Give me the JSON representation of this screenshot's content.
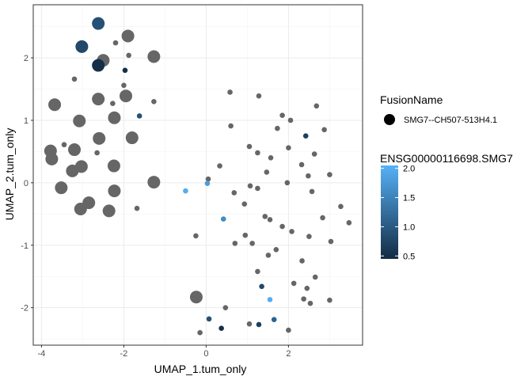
{
  "chart_data": {
    "type": "scatter",
    "title": "",
    "xlabel": "UMAP_1.tum_only",
    "ylabel": "UMAP_2.tum_only",
    "xlim": [
      -4.2,
      3.8
    ],
    "ylim": [
      -2.6,
      2.85
    ],
    "xticks": [
      -4,
      -2,
      0,
      2
    ],
    "yticks": [
      -2,
      -1,
      0,
      1,
      2
    ],
    "grid": true,
    "gray_color": "#666666",
    "legend": {
      "placement": "right",
      "fusion_title": "FusionName",
      "fusion_label": "SMG7--CH507-513H4.1",
      "color_title": "ENSG00000116698.SMG7",
      "color_ticks": [
        "2.0",
        "1.5",
        "1.0",
        "0.5"
      ],
      "color_tick_values": [
        2.0,
        1.5,
        1.0,
        0.5
      ],
      "color_range": [
        0.45,
        2.05
      ],
      "color_low": "#132B43",
      "color_high": "#56B1F7"
    },
    "points": [
      {
        "x": -2.62,
        "y": 2.55,
        "size": 4,
        "expr": 0.9
      },
      {
        "x": -3.02,
        "y": 2.18,
        "size": 4,
        "expr": 0.8
      },
      {
        "x": -2.62,
        "y": 1.88,
        "size": 4,
        "expr": 0.5
      },
      {
        "x": -1.97,
        "y": 1.8,
        "size": 1,
        "expr": 0.5
      },
      {
        "x": -1.62,
        "y": 1.07,
        "size": 1,
        "expr": 0.9
      },
      {
        "x": 2.42,
        "y": 0.75,
        "size": 1,
        "expr": 0.7
      },
      {
        "x": -0.5,
        "y": -0.13,
        "size": 1,
        "expr": 2.0
      },
      {
        "x": 0.03,
        "y": -0.01,
        "size": 1,
        "expr": 1.8
      },
      {
        "x": 0.42,
        "y": -0.58,
        "size": 1,
        "expr": 1.6
      },
      {
        "x": 1.35,
        "y": -1.66,
        "size": 1,
        "expr": 0.8
      },
      {
        "x": 1.55,
        "y": -1.87,
        "size": 1,
        "expr": 2.0
      },
      {
        "x": 0.07,
        "y": -2.18,
        "size": 1,
        "expr": 0.9
      },
      {
        "x": 0.37,
        "y": -2.33,
        "size": 1,
        "expr": 0.5
      },
      {
        "x": 1.65,
        "y": -2.19,
        "size": 1,
        "expr": 1.1
      },
      {
        "x": 1.28,
        "y": -2.27,
        "size": 1,
        "expr": 0.7
      },
      {
        "x": -2.2,
        "y": 2.24,
        "size": 1,
        "expr": null
      },
      {
        "x": -1.9,
        "y": 2.35,
        "size": 4,
        "expr": null
      },
      {
        "x": -2.5,
        "y": 1.96,
        "size": 4,
        "expr": null
      },
      {
        "x": -1.88,
        "y": 2.04,
        "size": 1,
        "expr": null
      },
      {
        "x": -1.27,
        "y": 2.02,
        "size": 4,
        "expr": null
      },
      {
        "x": -3.2,
        "y": 1.66,
        "size": 1,
        "expr": null
      },
      {
        "x": -2.0,
        "y": 1.56,
        "size": 1,
        "expr": null
      },
      {
        "x": -2.62,
        "y": 1.34,
        "size": 4,
        "expr": null
      },
      {
        "x": -1.95,
        "y": 1.39,
        "size": 4,
        "expr": null
      },
      {
        "x": -2.27,
        "y": 1.27,
        "size": 1,
        "expr": null
      },
      {
        "x": -3.68,
        "y": 1.25,
        "size": 4,
        "expr": null
      },
      {
        "x": -1.27,
        "y": 1.3,
        "size": 1,
        "expr": null
      },
      {
        "x": -3.08,
        "y": 0.99,
        "size": 4,
        "expr": null
      },
      {
        "x": -2.23,
        "y": 1.04,
        "size": 4,
        "expr": null
      },
      {
        "x": -2.6,
        "y": 0.71,
        "size": 4,
        "expr": null
      },
      {
        "x": -1.8,
        "y": 0.72,
        "size": 4,
        "expr": null
      },
      {
        "x": -3.78,
        "y": 0.51,
        "size": 4,
        "expr": null
      },
      {
        "x": -3.45,
        "y": 0.61,
        "size": 1,
        "expr": null
      },
      {
        "x": -3.2,
        "y": 0.53,
        "size": 4,
        "expr": null
      },
      {
        "x": -2.65,
        "y": 0.48,
        "size": 1,
        "expr": null
      },
      {
        "x": -3.75,
        "y": 0.38,
        "size": 4,
        "expr": null
      },
      {
        "x": -3.25,
        "y": 0.19,
        "size": 4,
        "expr": null
      },
      {
        "x": -3.03,
        "y": 0.26,
        "size": 4,
        "expr": null
      },
      {
        "x": -2.24,
        "y": 0.27,
        "size": 4,
        "expr": null
      },
      {
        "x": -1.27,
        "y": 0.01,
        "size": 4,
        "expr": null
      },
      {
        "x": -3.52,
        "y": -0.08,
        "size": 4,
        "expr": null
      },
      {
        "x": -2.23,
        "y": -0.13,
        "size": 4,
        "expr": null
      },
      {
        "x": -2.85,
        "y": -0.32,
        "size": 4,
        "expr": null
      },
      {
        "x": -3.05,
        "y": -0.42,
        "size": 4,
        "expr": null
      },
      {
        "x": -2.36,
        "y": -0.45,
        "size": 4,
        "expr": null
      },
      {
        "x": -1.68,
        "y": -0.41,
        "size": 1,
        "expr": null
      },
      {
        "x": -0.24,
        "y": -1.83,
        "size": 4,
        "expr": null
      },
      {
        "x": 0.58,
        "y": 1.45,
        "size": 1,
        "expr": null
      },
      {
        "x": 1.28,
        "y": 1.39,
        "size": 1,
        "expr": null
      },
      {
        "x": 2.68,
        "y": 1.23,
        "size": 1,
        "expr": null
      },
      {
        "x": 1.85,
        "y": 1.08,
        "size": 1,
        "expr": null
      },
      {
        "x": 2.05,
        "y": 1.0,
        "size": 1,
        "expr": null
      },
      {
        "x": 0.6,
        "y": 0.91,
        "size": 1,
        "expr": null
      },
      {
        "x": 1.73,
        "y": 0.87,
        "size": 1,
        "expr": null
      },
      {
        "x": 2.87,
        "y": 0.85,
        "size": 1,
        "expr": null
      },
      {
        "x": 1.05,
        "y": 0.58,
        "size": 1,
        "expr": null
      },
      {
        "x": 2.0,
        "y": 0.56,
        "size": 1,
        "expr": null
      },
      {
        "x": 1.25,
        "y": 0.48,
        "size": 1,
        "expr": null
      },
      {
        "x": 2.63,
        "y": 0.46,
        "size": 1,
        "expr": null
      },
      {
        "x": 1.57,
        "y": 0.4,
        "size": 1,
        "expr": null
      },
      {
        "x": 0.33,
        "y": 0.27,
        "size": 1,
        "expr": null
      },
      {
        "x": 2.32,
        "y": 0.29,
        "size": 1,
        "expr": null
      },
      {
        "x": 1.47,
        "y": 0.17,
        "size": 1,
        "expr": null
      },
      {
        "x": 2.48,
        "y": 0.11,
        "size": 1,
        "expr": null
      },
      {
        "x": 3.0,
        "y": 0.13,
        "size": 1,
        "expr": null
      },
      {
        "x": 0.05,
        "y": 0.06,
        "size": 1,
        "expr": null
      },
      {
        "x": 1.97,
        "y": 0.0,
        "size": 1,
        "expr": null
      },
      {
        "x": 1.07,
        "y": -0.05,
        "size": 1,
        "expr": null
      },
      {
        "x": 1.25,
        "y": -0.09,
        "size": 1,
        "expr": null
      },
      {
        "x": 0.68,
        "y": -0.16,
        "size": 1,
        "expr": null
      },
      {
        "x": 2.57,
        "y": -0.14,
        "size": 1,
        "expr": null
      },
      {
        "x": 0.93,
        "y": -0.34,
        "size": 1,
        "expr": null
      },
      {
        "x": 3.27,
        "y": -0.38,
        "size": 1,
        "expr": null
      },
      {
        "x": 1.43,
        "y": -0.54,
        "size": 1,
        "expr": null
      },
      {
        "x": 1.55,
        "y": -0.59,
        "size": 1,
        "expr": null
      },
      {
        "x": 2.83,
        "y": -0.56,
        "size": 1,
        "expr": null
      },
      {
        "x": 1.85,
        "y": -0.7,
        "size": 1,
        "expr": null
      },
      {
        "x": 3.47,
        "y": -0.64,
        "size": 1,
        "expr": null
      },
      {
        "x": 2.08,
        "y": -0.78,
        "size": 1,
        "expr": null
      },
      {
        "x": 0.95,
        "y": -0.84,
        "size": 1,
        "expr": null
      },
      {
        "x": -0.25,
        "y": -0.85,
        "size": 1,
        "expr": null
      },
      {
        "x": 2.5,
        "y": -0.86,
        "size": 1,
        "expr": null
      },
      {
        "x": 3.03,
        "y": -0.94,
        "size": 1,
        "expr": null
      },
      {
        "x": 0.7,
        "y": -0.97,
        "size": 1,
        "expr": null
      },
      {
        "x": 1.12,
        "y": -0.97,
        "size": 1,
        "expr": null
      },
      {
        "x": 1.7,
        "y": -1.07,
        "size": 1,
        "expr": null
      },
      {
        "x": 1.51,
        "y": -1.16,
        "size": 1,
        "expr": null
      },
      {
        "x": 2.33,
        "y": -1.25,
        "size": 1,
        "expr": null
      },
      {
        "x": 1.25,
        "y": -1.42,
        "size": 1,
        "expr": null
      },
      {
        "x": 2.65,
        "y": -1.51,
        "size": 1,
        "expr": null
      },
      {
        "x": 2.13,
        "y": -1.61,
        "size": 1,
        "expr": null
      },
      {
        "x": 2.45,
        "y": -1.69,
        "size": 1,
        "expr": null
      },
      {
        "x": 2.37,
        "y": -1.86,
        "size": 1,
        "expr": null
      },
      {
        "x": 3.0,
        "y": -1.88,
        "size": 1,
        "expr": null
      },
      {
        "x": 2.53,
        "y": -1.93,
        "size": 1,
        "expr": null
      },
      {
        "x": 0.47,
        "y": -2.0,
        "size": 1,
        "expr": null
      },
      {
        "x": 1.05,
        "y": -2.26,
        "size": 1,
        "expr": null
      },
      {
        "x": 2.0,
        "y": -2.36,
        "size": 1,
        "expr": null
      },
      {
        "x": -0.15,
        "y": -2.4,
        "size": 1,
        "expr": null
      }
    ]
  }
}
